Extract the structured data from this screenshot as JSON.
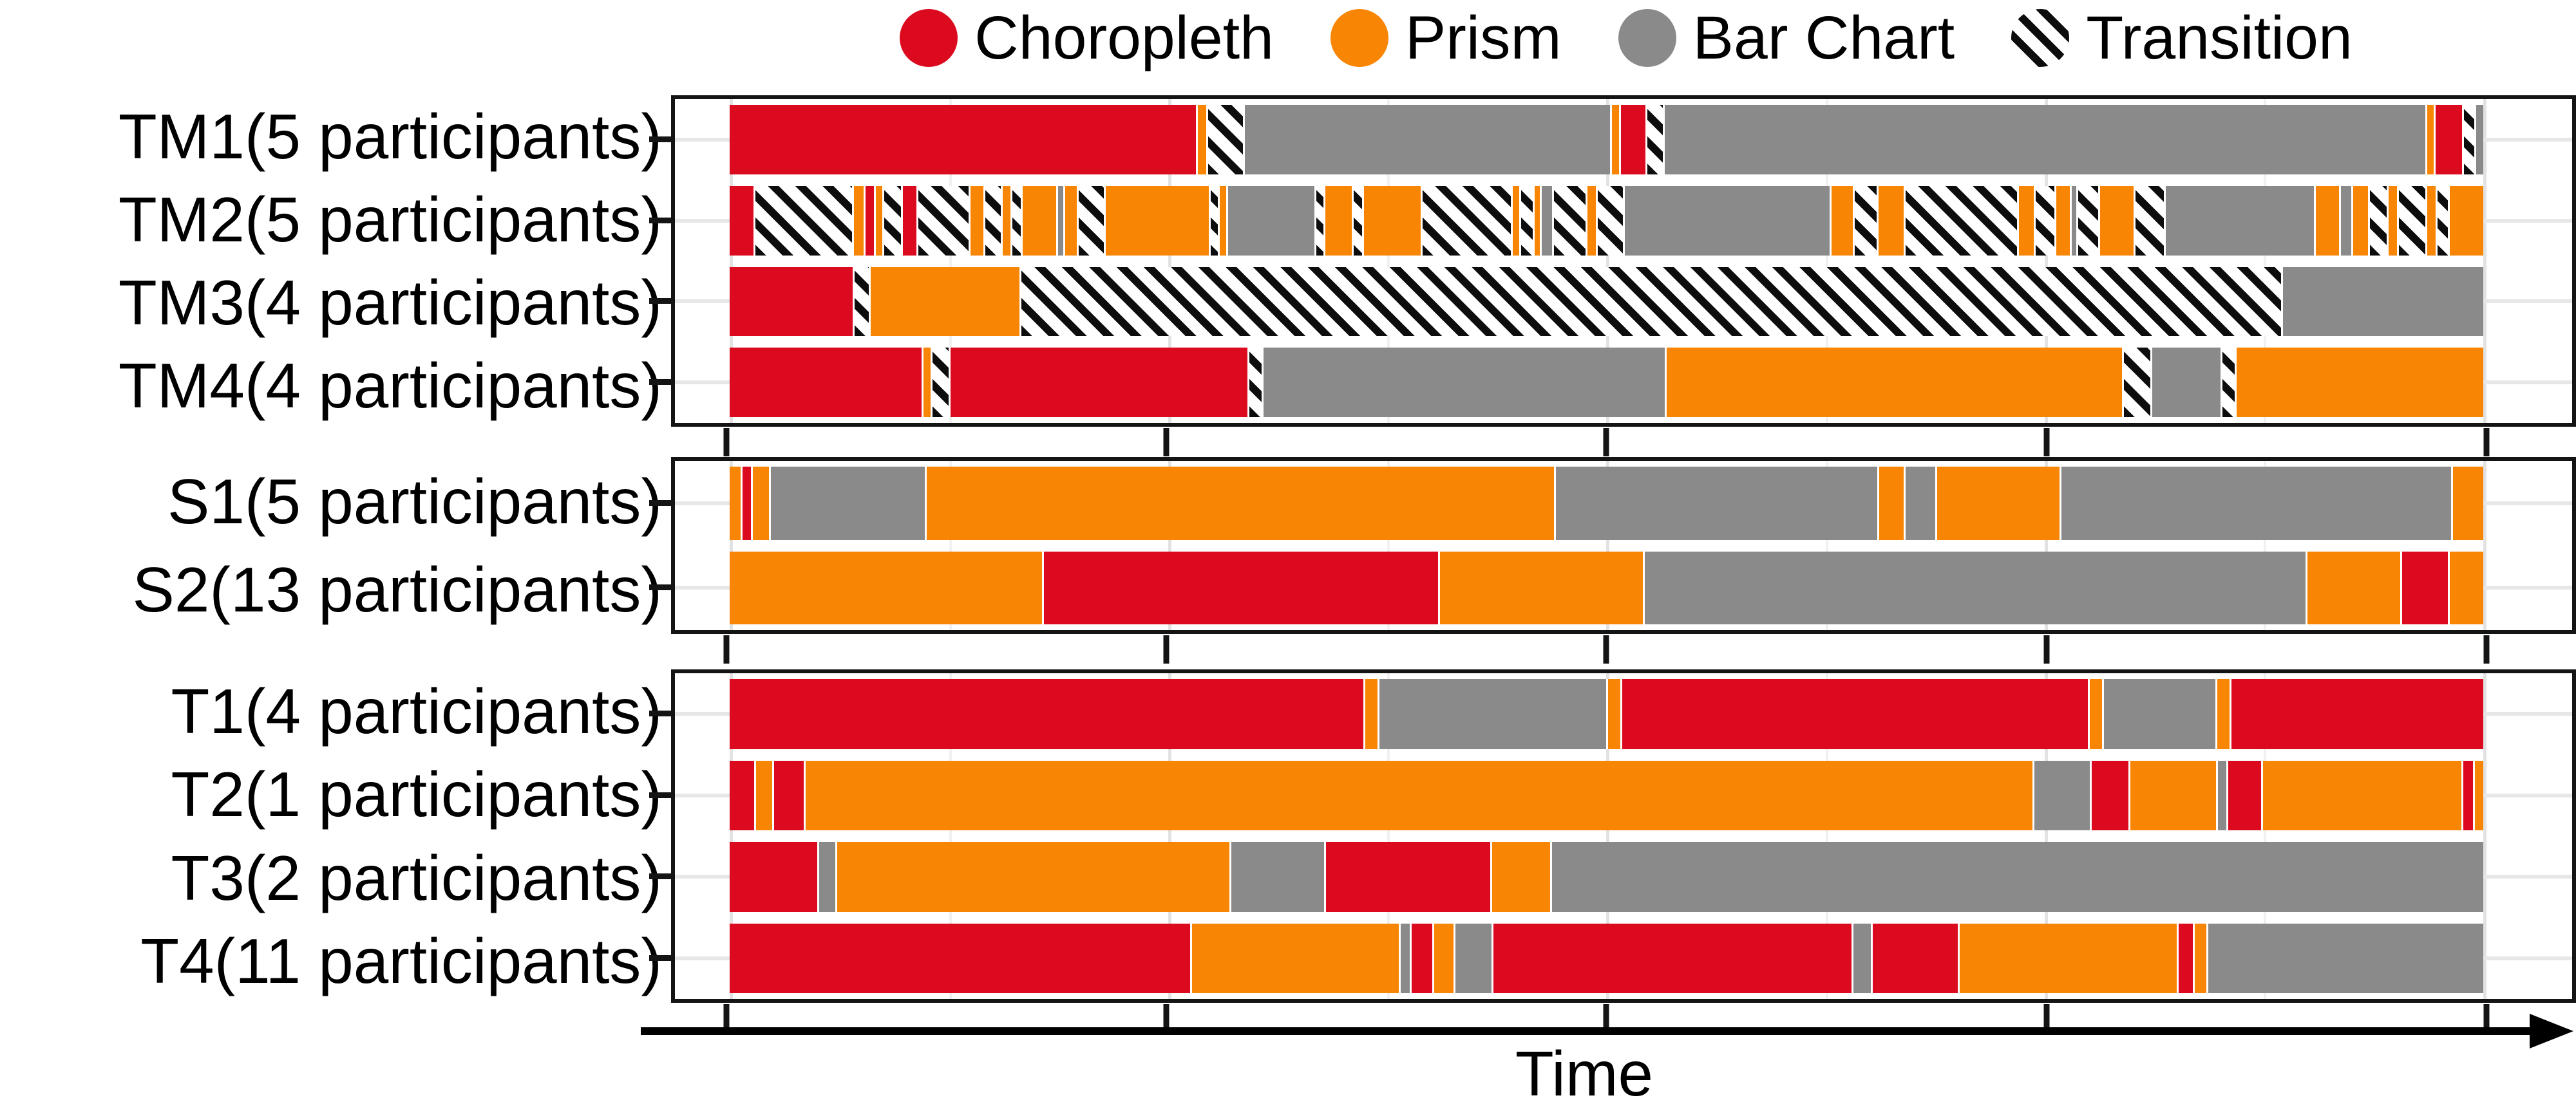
{
  "legend": {
    "items": [
      {
        "label": "Choropleth",
        "swatch": "circle",
        "color": "#DC0A1E"
      },
      {
        "label": "Prism",
        "swatch": "circle",
        "color": "#F98505"
      },
      {
        "label": "Bar Chart",
        "swatch": "circle",
        "color": "#8A8A8A"
      },
      {
        "label": "Transition",
        "swatch": "diagonal-stripes",
        "color": "#0d0d0d"
      }
    ]
  },
  "colors": {
    "choropleth": "#DC0A1E",
    "prism": "#F98505",
    "bar_chart": "#8A8A8A",
    "transition_stripe": "#0d0d0d",
    "transition_bg": "#ffffff",
    "panel_border": "#141414",
    "gridline_major": "#e2e2e2",
    "gridline_minor": "#f1f1f1"
  },
  "axis": {
    "label": "Time",
    "tick_count_per_panel": 5,
    "tick_labels": []
  },
  "chart_data": {
    "type": "timeline-stacked-bar",
    "description": "Horizontal timelines per group showing which visualization (Choropleth, Prism, Bar Chart) was used over time, with striped Transition periods. Segment values are percent of total session time.",
    "legend_position": "top",
    "x_axis": {
      "label": "Time",
      "numeric_labels_shown": false,
      "major_ticks": [
        0,
        25,
        50,
        75,
        100
      ]
    },
    "segment_types": {
      "c": "choropleth",
      "p": "prism",
      "b": "bar_chart",
      "t": "transition"
    },
    "panels": [
      {
        "rows": [
          {
            "label": "TM1(5 participants)",
            "segments": [
              [
                "c",
                26.9
              ],
              [
                "p",
                0.5
              ],
              [
                "t",
                2.0
              ],
              [
                "b",
                21.1
              ],
              [
                "p",
                0.4
              ],
              [
                "c",
                1.4
              ],
              [
                "t",
                0.9
              ],
              [
                "b",
                43.9
              ],
              [
                "p",
                0.4
              ],
              [
                "c",
                1.5
              ],
              [
                "t",
                0.6
              ],
              [
                "b",
                0.4
              ]
            ]
          },
          {
            "label": "TM2(5 participants)",
            "segments": [
              [
                "c",
                1.4
              ],
              [
                "t",
                5.8
              ],
              [
                "p",
                0.6
              ],
              [
                "c",
                0.5
              ],
              [
                "p",
                0.4
              ],
              [
                "t",
                1.0
              ],
              [
                "c",
                0.8
              ],
              [
                "t",
                3.0
              ],
              [
                "p",
                0.8
              ],
              [
                "t",
                0.9
              ],
              [
                "p",
                0.5
              ],
              [
                "t",
                0.5
              ],
              [
                "p",
                2.0
              ],
              [
                "b",
                0.3
              ],
              [
                "p",
                0.7
              ],
              [
                "t",
                1.5
              ],
              [
                "p",
                6.2
              ],
              [
                "t",
                0.4
              ],
              [
                "p",
                0.4
              ],
              [
                "b",
                5.2
              ],
              [
                "t",
                0.4
              ],
              [
                "p",
                1.6
              ],
              [
                "t",
                0.5
              ],
              [
                "p",
                3.4
              ],
              [
                "t",
                5.3
              ],
              [
                "p",
                0.4
              ],
              [
                "t",
                0.7
              ],
              [
                "p",
                0.3
              ],
              [
                "b",
                0.6
              ],
              [
                "t",
                1.9
              ],
              [
                "p",
                0.5
              ],
              [
                "t",
                1.5
              ],
              [
                "b",
                12.3
              ],
              [
                "p",
                1.3
              ],
              [
                "t",
                1.3
              ],
              [
                "p",
                1.5
              ],
              [
                "t",
                6.7
              ],
              [
                "p",
                0.9
              ],
              [
                "t",
                1.1
              ],
              [
                "p",
                0.8
              ],
              [
                "b",
                0.3
              ],
              [
                "t",
                1.2
              ],
              [
                "p",
                2.0
              ],
              [
                "t",
                1.7
              ],
              [
                "b",
                8.9
              ],
              [
                "p",
                1.4
              ],
              [
                "b",
                0.6
              ],
              [
                "p",
                0.9
              ],
              [
                "t",
                1.0
              ],
              [
                "p",
                0.5
              ],
              [
                "t",
                1.6
              ],
              [
                "p",
                0.5
              ],
              [
                "t",
                0.6
              ],
              [
                "p",
                2.0
              ]
            ]
          },
          {
            "label": "TM3(4 participants)",
            "segments": [
              [
                "c",
                7.0
              ],
              [
                "t",
                0.8
              ],
              [
                "p",
                8.5
              ],
              [
                "t",
                71.8
              ],
              [
                "b",
                11.4
              ]
            ]
          },
          {
            "label": "TM4(4 participants)",
            "segments": [
              [
                "c",
                10.9
              ],
              [
                "p",
                0.4
              ],
              [
                "t",
                0.9
              ],
              [
                "c",
                16.9
              ],
              [
                "t",
                0.7
              ],
              [
                "b",
                22.8
              ],
              [
                "p",
                25.9
              ],
              [
                "t",
                1.5
              ],
              [
                "b",
                3.9
              ],
              [
                "t",
                0.7
              ],
              [
                "p",
                14.0
              ]
            ]
          }
        ]
      },
      {
        "rows": [
          {
            "label": "S1(5 participants)",
            "segments": [
              [
                "p",
                0.6
              ],
              [
                "c",
                0.5
              ],
              [
                "p",
                0.9
              ],
              [
                "b",
                8.8
              ],
              [
                "p",
                35.9
              ],
              [
                "b",
                18.4
              ],
              [
                "p",
                1.4
              ],
              [
                "b",
                1.7
              ],
              [
                "p",
                7.0
              ],
              [
                "b",
                22.3
              ],
              [
                "p",
                1.7
              ]
            ]
          },
          {
            "label": "S2(13 participants)",
            "segments": [
              [
                "p",
                17.8
              ],
              [
                "c",
                22.5
              ],
              [
                "p",
                11.6
              ],
              [
                "b",
                37.7
              ],
              [
                "p",
                5.3
              ],
              [
                "c",
                2.6
              ],
              [
                "p",
                1.9
              ]
            ]
          }
        ]
      },
      {
        "rows": [
          {
            "label": "T1(4 participants)",
            "segments": [
              [
                "c",
                36.3
              ],
              [
                "p",
                0.7
              ],
              [
                "b",
                13.0
              ],
              [
                "p",
                0.7
              ],
              [
                "c",
                26.7
              ],
              [
                "p",
                0.7
              ],
              [
                "b",
                6.4
              ],
              [
                "p",
                0.7
              ],
              [
                "c",
                14.4
              ]
            ]
          },
          {
            "label": "T2(1 participants)",
            "segments": [
              [
                "c",
                1.4
              ],
              [
                "p",
                0.9
              ],
              [
                "c",
                1.7
              ],
              [
                "p",
                70.5
              ],
              [
                "b",
                3.2
              ],
              [
                "c",
                2.1
              ],
              [
                "p",
                4.9
              ],
              [
                "b",
                0.5
              ],
              [
                "c",
                1.9
              ],
              [
                "p",
                11.4
              ],
              [
                "c",
                0.55
              ],
              [
                "p",
                0.45
              ]
            ]
          },
          {
            "label": "T3(2 participants)",
            "segments": [
              [
                "c",
                5.0
              ],
              [
                "b",
                0.9
              ],
              [
                "p",
                22.4
              ],
              [
                "b",
                5.3
              ],
              [
                "c",
                9.4
              ],
              [
                "p",
                3.3
              ],
              [
                "b",
                53.2
              ]
            ]
          },
          {
            "label": "T4(11 participants)",
            "segments": [
              [
                "c",
                26.5
              ],
              [
                "p",
                11.9
              ],
              [
                "b",
                0.5
              ],
              [
                "c",
                1.2
              ],
              [
                "p",
                1.1
              ],
              [
                "b",
                2.1
              ],
              [
                "c",
                20.6
              ],
              [
                "b",
                1.0
              ],
              [
                "c",
                4.9
              ],
              [
                "p",
                12.5
              ],
              [
                "c",
                0.8
              ],
              [
                "p",
                0.7
              ],
              [
                "b",
                15.8
              ]
            ]
          }
        ]
      }
    ]
  }
}
